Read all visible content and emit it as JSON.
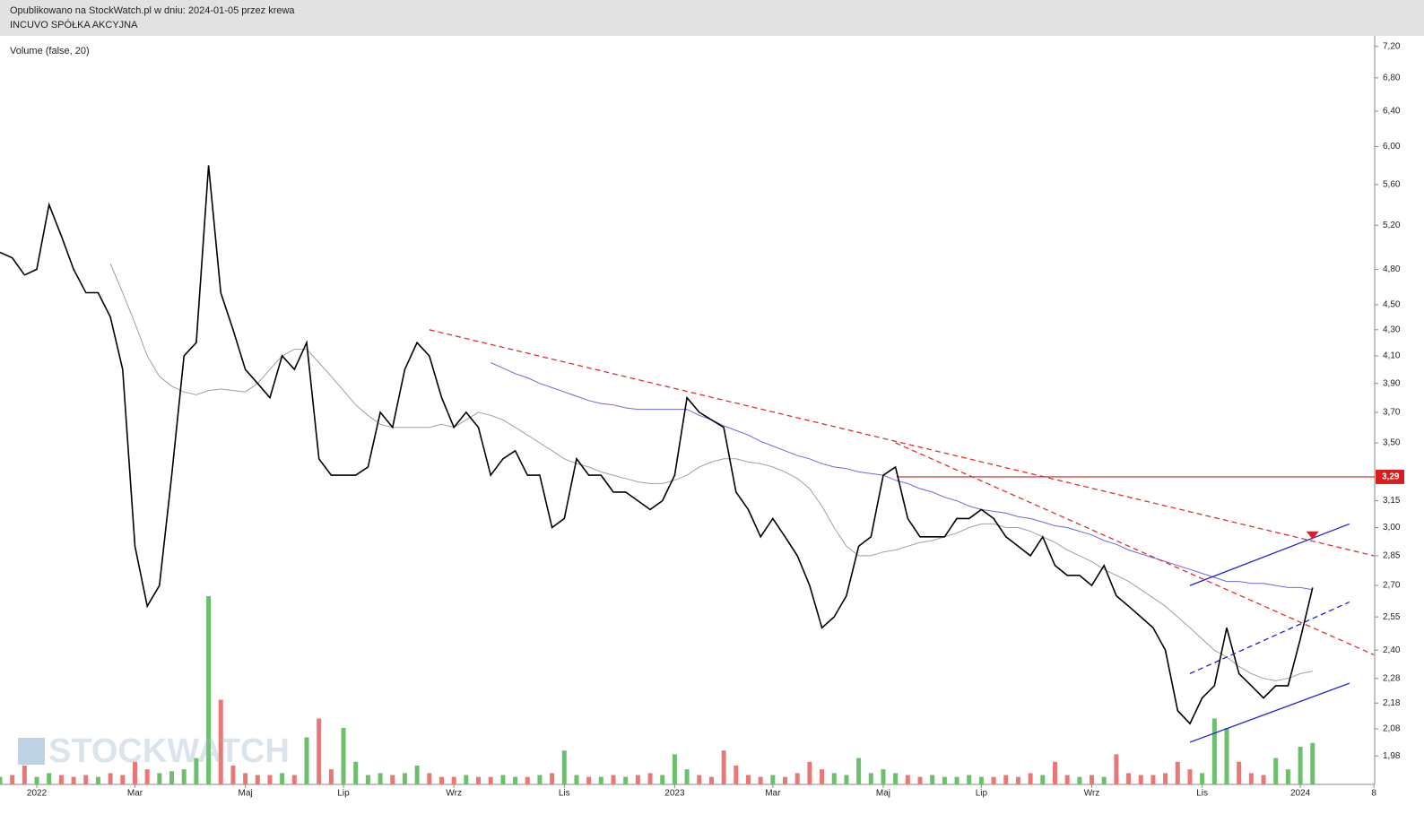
{
  "header": {
    "published": "Opublikowano na StockWatch.pl w dniu: 2024-01-05 przez krewa",
    "company": "INCUVO SPÓŁKA AKCYJNA"
  },
  "chart_data": {
    "type": "line",
    "subtitle": "Volume (false, 20)",
    "watermark": "STOCKWATCH",
    "log_scale": true,
    "categories": [
      null,
      null,
      null,
      "2022",
      null,
      null,
      null,
      null,
      null,
      null,
      null,
      "Mar",
      null,
      null,
      null,
      null,
      null,
      null,
      null,
      null,
      "Maj",
      null,
      null,
      null,
      null,
      null,
      null,
      null,
      "Lip",
      null,
      null,
      null,
      null,
      null,
      null,
      null,
      null,
      "Wrz",
      null,
      null,
      null,
      null,
      null,
      null,
      null,
      null,
      "Lis",
      null,
      null,
      null,
      null,
      null,
      null,
      null,
      null,
      "2023",
      null,
      null,
      null,
      null,
      null,
      null,
      null,
      "Mar",
      null,
      null,
      null,
      null,
      null,
      null,
      null,
      null,
      "Maj",
      null,
      null,
      null,
      null,
      null,
      null,
      null,
      "Lip",
      null,
      null,
      null,
      null,
      null,
      null,
      null,
      null,
      "Wrz",
      null,
      null,
      null,
      null,
      null,
      null,
      null,
      null,
      "Lis",
      null,
      null,
      null,
      null,
      null,
      null,
      null,
      "2024",
      null,
      null,
      null,
      null,
      null,
      "8"
    ],
    "series": [
      {
        "color": "#000000",
        "values": [
          4.95,
          4.9,
          4.75,
          4.8,
          5.4,
          5.1,
          4.8,
          4.6,
          4.6,
          4.4,
          4.0,
          2.9,
          2.6,
          2.7,
          3.3,
          4.1,
          4.2,
          5.8,
          4.6,
          4.3,
          4.0,
          3.9,
          3.8,
          4.1,
          4.0,
          4.2,
          3.4,
          3.3,
          3.3,
          3.3,
          3.35,
          3.7,
          3.6,
          4.0,
          4.2,
          4.1,
          3.8,
          3.6,
          3.7,
          3.6,
          3.3,
          3.4,
          3.45,
          3.3,
          3.3,
          3.0,
          3.05,
          3.4,
          3.3,
          3.3,
          3.2,
          3.2,
          3.15,
          3.1,
          3.15,
          3.3,
          3.8,
          3.7,
          3.65,
          3.6,
          3.2,
          3.1,
          2.95,
          3.05,
          2.95,
          2.85,
          2.7,
          2.5,
          2.55,
          2.65,
          2.9,
          2.95,
          3.3,
          3.35,
          3.05,
          2.95,
          2.95,
          2.95,
          3.05,
          3.05,
          3.1,
          3.05,
          2.95,
          2.9,
          2.85,
          2.95,
          2.8,
          2.75,
          2.75,
          2.7,
          2.8,
          2.65,
          2.6,
          2.55,
          2.5,
          2.4,
          2.15,
          2.1,
          2.2,
          2.25,
          2.5,
          2.3,
          2.25,
          2.2,
          2.25,
          2.25,
          2.45,
          2.69,
          null,
          null,
          null,
          null,
          null
        ]
      },
      {
        "color": "#a0a0a0",
        "values": [
          null,
          null,
          null,
          null,
          null,
          null,
          null,
          null,
          null,
          4.85,
          4.6,
          4.35,
          4.1,
          3.95,
          3.88,
          3.84,
          3.82,
          3.85,
          3.86,
          3.85,
          3.84,
          3.9,
          4.0,
          4.1,
          4.15,
          4.15,
          4.05,
          3.95,
          3.85,
          3.75,
          3.68,
          3.62,
          3.6,
          3.6,
          3.6,
          3.6,
          3.62,
          3.6,
          3.65,
          3.7,
          3.68,
          3.65,
          3.6,
          3.55,
          3.5,
          3.45,
          3.4,
          3.37,
          3.35,
          3.32,
          3.3,
          3.28,
          3.26,
          3.25,
          3.25,
          3.27,
          3.3,
          3.35,
          3.38,
          3.4,
          3.4,
          3.38,
          3.37,
          3.35,
          3.32,
          3.28,
          3.22,
          3.12,
          3.0,
          2.9,
          2.85,
          2.85,
          2.87,
          2.88,
          2.9,
          2.92,
          2.93,
          2.95,
          2.97,
          3.0,
          3.02,
          3.02,
          3.0,
          3.0,
          2.98,
          2.95,
          2.92,
          2.88,
          2.85,
          2.82,
          2.78,
          2.75,
          2.72,
          2.68,
          2.64,
          2.6,
          2.55,
          2.5,
          2.45,
          2.4,
          2.37,
          2.33,
          2.3,
          2.28,
          2.27,
          2.28,
          2.3,
          2.31,
          null,
          null,
          null,
          null,
          null
        ]
      },
      {
        "color": "#6a6ad8",
        "values": [
          null,
          null,
          null,
          null,
          null,
          null,
          null,
          null,
          null,
          null,
          null,
          null,
          null,
          null,
          null,
          null,
          null,
          null,
          null,
          null,
          null,
          null,
          null,
          null,
          null,
          null,
          null,
          null,
          null,
          null,
          null,
          null,
          null,
          null,
          null,
          null,
          null,
          null,
          null,
          null,
          4.05,
          4.01,
          3.97,
          3.94,
          3.9,
          3.87,
          3.84,
          3.81,
          3.78,
          3.76,
          3.75,
          3.73,
          3.72,
          3.72,
          3.72,
          3.72,
          3.72,
          3.68,
          3.65,
          3.61,
          3.58,
          3.55,
          3.51,
          3.48,
          3.45,
          3.42,
          3.4,
          3.37,
          3.35,
          3.34,
          3.32,
          3.31,
          3.3,
          3.27,
          3.25,
          3.22,
          3.2,
          3.17,
          3.15,
          3.12,
          3.1,
          3.09,
          3.08,
          3.06,
          3.05,
          3.03,
          3.01,
          3.0,
          2.98,
          2.96,
          2.93,
          2.91,
          2.88,
          2.86,
          2.84,
          2.82,
          2.8,
          2.78,
          2.76,
          2.74,
          2.72,
          2.72,
          2.71,
          2.71,
          2.7,
          2.69,
          2.69,
          2.68,
          null,
          null,
          null,
          null,
          null
        ]
      }
    ],
    "volume": {
      "up_color": "#6cbf6c",
      "down_color": "#e87878",
      "lim": [
        0,
        100
      ],
      "values": [
        4,
        5,
        10,
        4,
        6,
        5,
        4,
        5,
        4,
        6,
        5,
        12,
        8,
        6,
        7,
        8,
        14,
        100,
        45,
        10,
        6,
        5,
        5,
        6,
        5,
        25,
        35,
        8,
        30,
        12,
        5,
        6,
        5,
        6,
        10,
        6,
        4,
        4,
        5,
        4,
        4,
        5,
        4,
        4,
        5,
        6,
        18,
        5,
        4,
        4,
        5,
        4,
        5,
        6,
        5,
        16,
        8,
        5,
        4,
        18,
        10,
        5,
        4,
        5,
        4,
        6,
        12,
        8,
        6,
        5,
        14,
        6,
        8,
        6,
        5,
        4,
        5,
        4,
        4,
        5,
        4,
        4,
        5,
        4,
        6,
        5,
        12,
        5,
        4,
        5,
        4,
        16,
        6,
        5,
        5,
        6,
        12,
        8,
        6,
        35,
        30,
        12,
        6,
        5,
        14,
        8,
        20,
        22,
        null,
        null,
        null,
        null,
        null
      ]
    },
    "ylim": [
      1.88,
      7.34
    ],
    "yticks": [
      {
        "value": 7.2,
        "label": "7,20"
      },
      {
        "value": 6.8,
        "label": "6,80"
      },
      {
        "value": 6.4,
        "label": "6,40"
      },
      {
        "value": 6.0,
        "label": "6,00"
      },
      {
        "value": 5.6,
        "label": "5,60"
      },
      {
        "value": 5.2,
        "label": "5,20"
      },
      {
        "value": 4.8,
        "label": "4,80"
      },
      {
        "value": 4.5,
        "label": "4,50"
      },
      {
        "value": 4.3,
        "label": "4,30"
      },
      {
        "value": 4.1,
        "label": "4,10"
      },
      {
        "value": 3.9,
        "label": "3,90"
      },
      {
        "value": 3.7,
        "label": "3,70"
      },
      {
        "value": 3.5,
        "label": "3,50"
      },
      {
        "value": 3.15,
        "label": "3,15"
      },
      {
        "value": 3.0,
        "label": "3,00"
      },
      {
        "value": 2.85,
        "label": "2,85"
      },
      {
        "value": 2.7,
        "label": "2,70"
      },
      {
        "value": 2.55,
        "label": "2,55"
      },
      {
        "value": 2.4,
        "label": "2,40"
      },
      {
        "value": 2.28,
        "label": "2,28"
      },
      {
        "value": 2.18,
        "label": "2,18"
      },
      {
        "value": 2.08,
        "label": "2,08"
      },
      {
        "value": 1.98,
        "label": "1,98"
      }
    ],
    "hline": {
      "value": 3.29,
      "label": "3,29",
      "color": "#d42020"
    },
    "trendlines": [
      {
        "from": [
          35,
          4.3
        ],
        "to": [
          112,
          2.85
        ],
        "color": "#e03030",
        "dashed": true
      },
      {
        "from": [
          73,
          3.5
        ],
        "to": [
          112,
          2.38
        ],
        "color": "#e03030",
        "dashed": true
      },
      {
        "from": [
          97,
          2.7
        ],
        "to": [
          110,
          3.02
        ],
        "color": "#2020d0",
        "dashed": false
      },
      {
        "from": [
          97,
          2.3
        ],
        "to": [
          110,
          2.62
        ],
        "color": "#2020d0",
        "dashed": true
      },
      {
        "from": [
          97,
          2.03
        ],
        "to": [
          110,
          2.26
        ],
        "color": "#2020d0",
        "dashed": false
      }
    ],
    "marker": {
      "at": [
        107,
        2.95
      ],
      "color": "#e02020"
    }
  }
}
